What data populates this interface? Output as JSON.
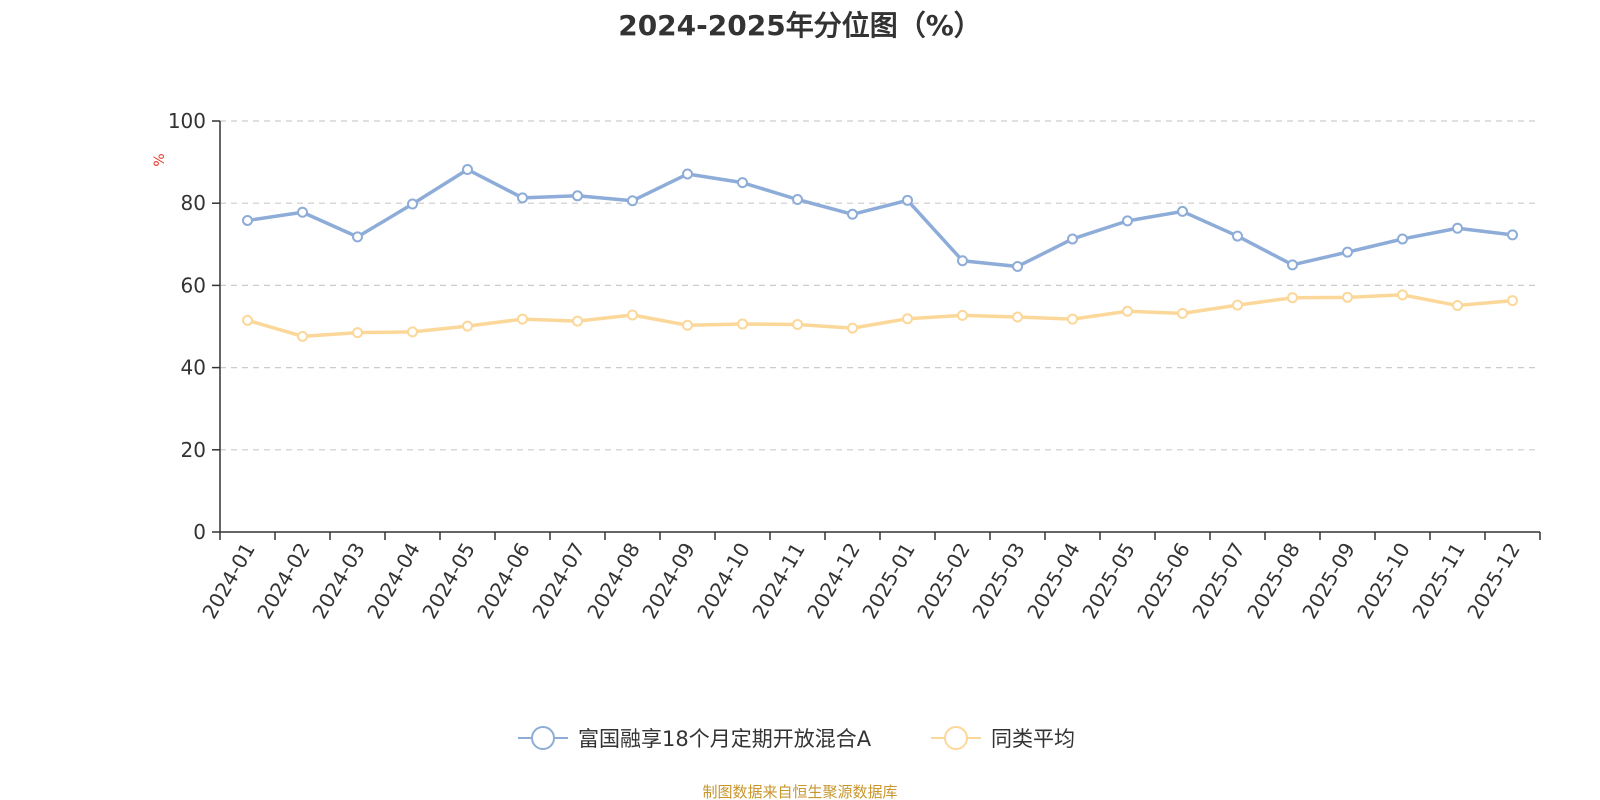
{
  "chart_data": {
    "type": "line",
    "title": "2024-2025年分位图（%）",
    "ylabel": "%",
    "xlabel": "",
    "ylim": [
      0,
      100
    ],
    "yticks": [
      "0",
      "20",
      "40",
      "60",
      "80",
      "100"
    ],
    "grid": true,
    "legend_position": "bottom",
    "categories": [
      "2024-01",
      "2024-02",
      "2024-03",
      "2024-04",
      "2024-05",
      "2024-06",
      "2024-07",
      "2024-08",
      "2024-09",
      "2024-10",
      "2024-11",
      "2024-12",
      "2025-01",
      "2025-02",
      "2025-03",
      "2025-04",
      "2025-05",
      "2025-06",
      "2025-07",
      "2025-08",
      "2025-09",
      "2025-10",
      "2025-11",
      "2025-12"
    ],
    "series": [
      {
        "name": "富国融享18个月定期开放混合A",
        "color": "#8eacd8",
        "values": [
          75.8,
          77.8,
          71.8,
          79.8,
          88.2,
          81.3,
          81.8,
          80.6,
          87.1,
          85.0,
          80.9,
          77.3,
          80.7,
          66.0,
          64.6,
          71.3,
          75.7,
          78.0,
          72.0,
          65.0,
          68.1,
          71.3,
          73.9,
          72.3
        ]
      },
      {
        "name": "同类平均",
        "color": "#fbd89a",
        "values": [
          51.5,
          47.6,
          48.5,
          48.7,
          50.1,
          51.8,
          51.3,
          52.8,
          50.3,
          50.6,
          50.5,
          49.6,
          51.9,
          52.7,
          52.3,
          51.8,
          53.7,
          53.2,
          55.2,
          57.0,
          57.1,
          57.7,
          55.1,
          56.3
        ]
      }
    ],
    "source_note": "制图数据来自恒生聚源数据库",
    "colors": {
      "axis": "#333333",
      "grid": "#cccccc",
      "unit_label": "#e8382b",
      "source_note": "#c8962c",
      "title": "#333333"
    }
  }
}
